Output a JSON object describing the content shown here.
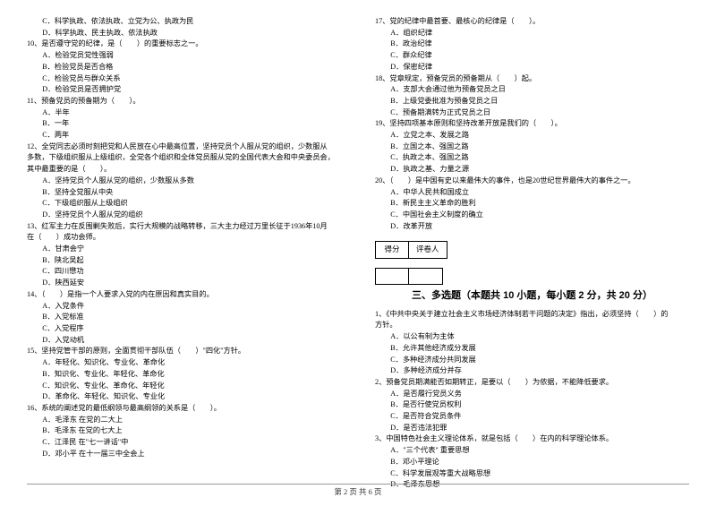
{
  "left": {
    "pre_opts": [
      "C．科学执政、依法执政、立党为公、执政为民",
      "D．科学执政、民主执政、依法执政"
    ],
    "q10": {
      "stem": "10、是否遵守党的纪律，是（　　）的重要标志之一。",
      "opts": [
        "A．检验党员党性强弱",
        "B．检验党员是否合格",
        "C．检验党员与群众关系",
        "D．检验党员是否拥护党"
      ]
    },
    "q11": {
      "stem": "11、预备党员的预备期为（　　）。",
      "opts": [
        "A．半年",
        "B．一年",
        "C．两年"
      ]
    },
    "q12": {
      "stem": "12、全党同志必须时刻把党和人民放在心中最高位置，坚持党员个人服从党的组织，少数服从",
      "stem2": "多数，下级组织服从上级组织，全党各个组织和全体党员服从党的全国代表大会和中央委员会，",
      "stem3": "其中最重要的是（　　）。",
      "opts": [
        "A．坚持党员个人服从党的组织，少数服从多数",
        "B．坚持全党服从中央",
        "C．下级组织服从上级组织",
        "D．坚持党员个人服从党的组织"
      ]
    },
    "q13": {
      "stem": "13、红军主力在反围剿失败后，实行大规模的战略转移，三大主力经过万里长征于1936年10月",
      "stem2": "在（　　）成功会师。",
      "opts": [
        "A．甘肃会宁",
        "B．陕北吴起",
        "C．四川懋功",
        "D．陕西延安"
      ]
    },
    "q14": {
      "stem": "14、（　　）是指一个人要求入党的内在原因和真实目的。",
      "opts": [
        "A．入党条件",
        "B．入党标准",
        "C．入党程序",
        "D．入党动机"
      ]
    },
    "q15": {
      "stem": "15、坚持党管干部的原则，全面贯彻干部队伍（　　）\"四化\"方针。",
      "opts": [
        "A．年轻化、知识化、专业化、革命化",
        "B．知识化、专业化、年轻化、革命化",
        "C．知识化、专业化、革命化、年轻化",
        "D．革命化、年轻化、知识化、专业化"
      ]
    },
    "q16": {
      "stem": "16、系统的阐述党的最低纲领与最高纲领的关系是（　　）。",
      "opts": [
        "A．毛泽东 在党的二大上",
        "B．毛泽东 在党的七大上",
        "C．江泽民 在\"七一讲话\"中",
        "D．邓小平 在十一届三中全会上"
      ]
    }
  },
  "right": {
    "q17": {
      "stem": "17、党的纪律中最首要、最核心的纪律是（　　）。",
      "opts": [
        "A．组织纪律",
        "B．政治纪律",
        "C．群众纪律",
        "D．保密纪律"
      ]
    },
    "q18": {
      "stem": "18、党章规定，预备党员的预备期从（　　）起。",
      "opts": [
        "A．支部大会通过他为预备党员之日",
        "B．上级党委批准为预备党员之日",
        "C．预备期满转为正式党员之日"
      ]
    },
    "q19": {
      "stem": "19、坚持四项基本原则和坚持改革开放是我们的（　　）。",
      "opts": [
        "A．立党之本、发展之路",
        "B．立国之本、强国之路",
        "C．执政之本、强国之路",
        "D．执政之基、力量之源"
      ]
    },
    "q20": {
      "stem": "20、（　　）是中国有史以来最伟大的事件，也是20世纪世界最伟大的事件之一。",
      "opts": [
        "A．中华人民共和国成立",
        "B．新民主主义革命的胜利",
        "C．中国社会主义制度的确立",
        "D．改革开放"
      ]
    },
    "score_labels": {
      "a": "得分",
      "b": "评卷人"
    },
    "section_title": "三、多选题（本题共 10 小题，每小题 2 分，共 20 分）",
    "mq1": {
      "stem": "1、《中共中央关于建立社会主义市场经济体制若干问题的决定》指出，必须坚持（　　）的",
      "stem2": "方针。",
      "opts": [
        "A．以公有制为主体",
        "B．允许其他经济成分发展",
        "C．多种经济成分共同发展",
        "D．多种经济成分并存"
      ]
    },
    "mq2": {
      "stem": "2、预备党员期满能否如期转正，是要以（　　）为依据，不能降低要求。",
      "opts": [
        "A．是否履行党员义务",
        "B．是否行使党员权利",
        "C．是否符合党员条件",
        "D．是否违法犯罪"
      ]
    },
    "mq3": {
      "stem": "3、中国特色社会主义理论体系，就是包括（　　）在内的科学理论体系。",
      "opts": [
        "A．\"三个代表\" 重要思想",
        "B．邓小平理论",
        "C．科学发展观等重大战略思想",
        "D．毛泽东思想"
      ]
    }
  },
  "footer": "第 2 页 共 6 页"
}
